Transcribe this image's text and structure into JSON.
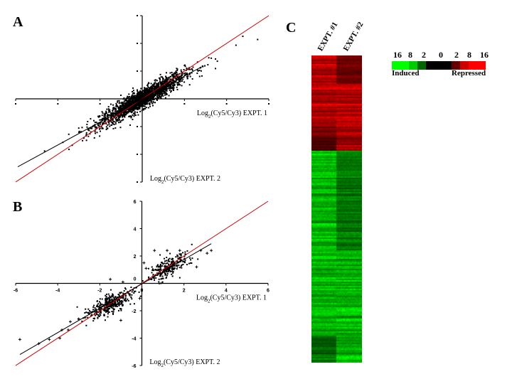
{
  "panels": {
    "A": {
      "letter": "A"
    },
    "B": {
      "letter": "B"
    },
    "C": {
      "letter": "C"
    }
  },
  "chart_data": [
    {
      "type": "scatter",
      "panel": "A",
      "xlabel": "Log2(Cy5/Cy3) EXPT. 1",
      "ylabel": "Log2(Cy5/Cy3) EXPT. 2",
      "xlim": [
        -6,
        6
      ],
      "ylim": [
        -6,
        6
      ],
      "xticks": [
        -6,
        -4,
        -2,
        0,
        2,
        4,
        6
      ],
      "yticks": [
        -6,
        -4,
        -2,
        0,
        2,
        4,
        6
      ],
      "tick_labels_visible": false,
      "grid": false,
      "lines": [
        {
          "name": "identity",
          "color": "#cc0000",
          "slope": 1,
          "intercept": 0
        },
        {
          "name": "fit",
          "color": "#000000",
          "x": [
            -5.9,
            2.8
          ],
          "y": [
            -4.9,
            2.3
          ]
        }
      ],
      "cloud": {
        "center": [
          0,
          0
        ],
        "spread_major": 1.0,
        "spread_minor": 0.35,
        "angle_slope": 0.85,
        "n_points": 1800
      }
    },
    {
      "type": "scatter",
      "panel": "B",
      "xlabel": "Log2(Cy5/Cy3) EXPT. 1",
      "ylabel": "Log2(Cy5/Cy3) EXPT. 2",
      "xlim": [
        -6,
        6
      ],
      "ylim": [
        -6,
        6
      ],
      "xticks": [
        -6,
        -4,
        -2,
        0,
        2,
        4,
        6
      ],
      "yticks": [
        -6,
        -4,
        -2,
        0,
        2,
        4,
        6
      ],
      "tick_labels": [
        "-6",
        "-4",
        "-2",
        "0",
        "2",
        "4",
        "6"
      ],
      "grid": false,
      "lines": [
        {
          "name": "identity",
          "color": "#cc0000",
          "slope": 1,
          "intercept": 0
        },
        {
          "name": "fit",
          "color": "#000000",
          "x": [
            -5.8,
            3.3
          ],
          "y": [
            -5.2,
            2.9
          ]
        }
      ],
      "clusters": [
        {
          "name": "induced",
          "center": [
            -1.5,
            -1.5
          ],
          "spread": [
            0.5,
            0.35
          ],
          "n_points": 350
        },
        {
          "name": "repressed",
          "center": [
            1.3,
            1.2
          ],
          "spread": [
            0.45,
            0.35
          ],
          "n_points": 250
        }
      ],
      "outliers": [
        [
          -5.8,
          -4.1
        ],
        [
          -4.9,
          -4.4
        ],
        [
          -4.4,
          -4.1
        ],
        [
          -3.9,
          -4.0
        ],
        [
          -3.8,
          -3.4
        ],
        [
          -3.5,
          -3.4
        ],
        [
          -3.4,
          -2.8
        ],
        [
          -3.0,
          -2.6
        ],
        [
          -2.7,
          -2.5
        ],
        [
          -2.5,
          -2.2
        ],
        [
          -1.0,
          -2.7
        ],
        [
          -1.5,
          0.3
        ],
        [
          -0.9,
          0.1
        ],
        [
          0.6,
          2.4
        ],
        [
          1.2,
          2.4
        ],
        [
          1.8,
          2.4
        ],
        [
          2.6,
          1.2
        ],
        [
          2.8,
          2.4
        ],
        [
          3.1,
          2.2
        ],
        [
          3.3,
          2.4
        ],
        [
          0.1,
          1.5
        ],
        [
          0.2,
          1.1
        ],
        [
          -0.1,
          -1.1
        ]
      ]
    },
    {
      "type": "heatmap",
      "panel": "C",
      "columns": [
        "EXPT. #1",
        "EXPT. #2"
      ],
      "rows_description": "genes sorted: repressed (red) on top ~31%, induced (green) below",
      "red_fraction": 0.31,
      "legend": {
        "ticks": [
          "16",
          "8",
          "2",
          "0",
          "2",
          "8",
          "16"
        ],
        "colors": [
          "#00ff00",
          "#00cc00",
          "#006600",
          "#000000",
          "#660000",
          "#cc0000",
          "#ff0000"
        ],
        "left_label": "Induced",
        "right_label": "Repressed"
      }
    }
  ],
  "axis_labels": {
    "x": {
      "prefix": "Log",
      "sub": "2",
      "suffix": "(Cy5/Cy3) EXPT. 1"
    },
    "y": {
      "prefix": "Log",
      "sub": "2",
      "suffix": "(Cy5/Cy3) EXPT. 2"
    }
  }
}
